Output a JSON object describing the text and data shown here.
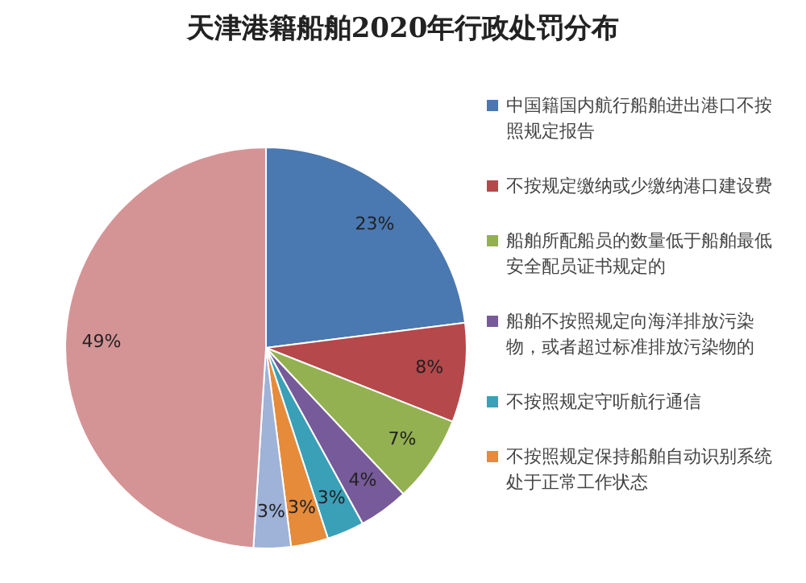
{
  "chart_data": {
    "type": "pie",
    "title": "天津港籍船舶2020年行政处罚分布",
    "categories": [
      "中国籍国内航行船舶进出港口不按照规定报告",
      "不按规定缴纳或少缴纳港口建设费",
      "船舶所配船员的数量低于船舶最低安全配员证书规定的",
      "船舶不按照规定向海洋排放污染物，或者超过标准排放污染物的",
      "不按照规定守听航行通信",
      "不按照规定保持船舶自动识别系统处于正常工作状态",
      null,
      null
    ],
    "values": [
      23,
      8,
      7,
      4,
      3,
      3,
      3,
      49
    ],
    "colors": [
      "#4a78b0",
      "#b5484a",
      "#93b150",
      "#775a9a",
      "#3aa0b8",
      "#e58b3a",
      "#9fb2d8",
      "#d49496"
    ],
    "value_labels": [
      "23%",
      "8%",
      "7%",
      "4%",
      "3%",
      "3%",
      "3%",
      "49%"
    ],
    "legend": "right"
  }
}
